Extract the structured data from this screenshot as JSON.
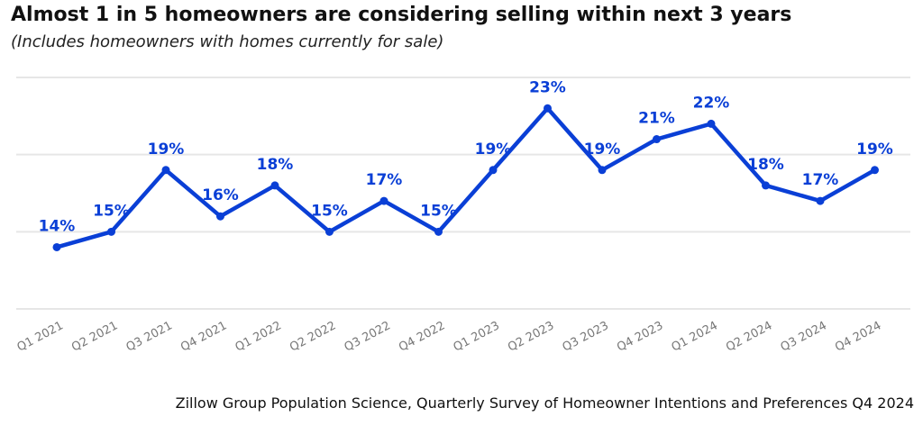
{
  "title": "Almost 1 in 5 homeowners are considering selling within next 3 years",
  "subtitle": "(Includes homeowners with homes currently for sale)",
  "source": "Zillow Group Population Science, Quarterly Survey of Homeowner Intentions and Preferences Q4 2024",
  "colors": {
    "line": "#0a3fd6",
    "label": "#0a3fd6",
    "grid": "#e6e6e6",
    "tick": "#777777"
  },
  "chart_data": {
    "type": "line",
    "categories": [
      "Q1 2021",
      "Q2 2021",
      "Q3 2021",
      "Q4 2021",
      "Q1 2022",
      "Q2 2022",
      "Q3 2022",
      "Q4 2022",
      "Q1 2023",
      "Q2 2023",
      "Q3 2023",
      "Q4 2023",
      "Q1 2024",
      "Q2 2024",
      "Q3 2024",
      "Q4 2024"
    ],
    "values": [
      14,
      15,
      19,
      16,
      18,
      15,
      17,
      15,
      19,
      23,
      19,
      21,
      22,
      18,
      17,
      19
    ],
    "value_labels": [
      "14%",
      "15%",
      "19%",
      "16%",
      "18%",
      "15%",
      "17%",
      "15%",
      "19%",
      "23%",
      "19%",
      "21%",
      "22%",
      "18%",
      "17%",
      "19%"
    ],
    "ylim": [
      10,
      25
    ],
    "gridlines": [
      10,
      15,
      20,
      25
    ],
    "grid": true,
    "legend": "none"
  }
}
